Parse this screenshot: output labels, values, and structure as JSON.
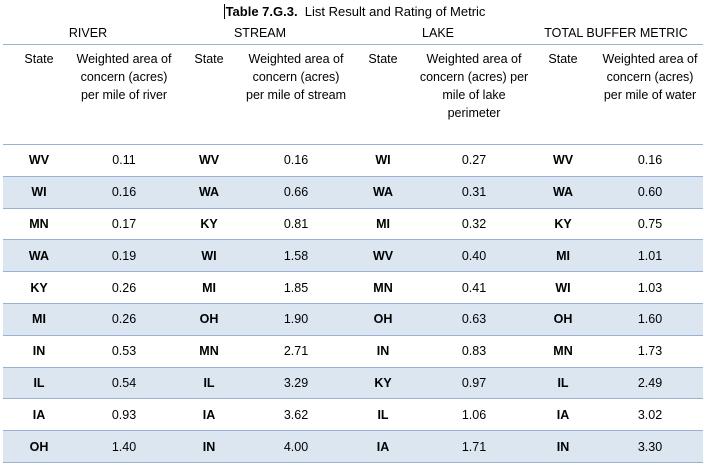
{
  "caption": {
    "prefix": "Table 7.G.3.",
    "rest": "  List Result and Rating of Metric"
  },
  "groups": [
    "RIVER",
    "STREAM",
    "LAKE",
    "TOTAL BUFFER METRIC"
  ],
  "subheaders": [
    {
      "state": "State",
      "metric": "Weighted area of concern (acres) per mile of river"
    },
    {
      "state": "State",
      "metric": "Weighted area of concern (acres) per mile of stream"
    },
    {
      "state": "State",
      "metric": "Weighted area of concern (acres) per mile of lake perimeter"
    },
    {
      "state": "State",
      "metric": "Weighted area of concern (acres) per mile of water"
    }
  ],
  "rows": [
    [
      {
        "s": "WV",
        "v": "0.11"
      },
      {
        "s": "WV",
        "v": "0.16"
      },
      {
        "s": "WI",
        "v": "0.27"
      },
      {
        "s": "WV",
        "v": "0.16"
      }
    ],
    [
      {
        "s": "WI",
        "v": "0.16"
      },
      {
        "s": "WA",
        "v": "0.66"
      },
      {
        "s": "WA",
        "v": "0.31"
      },
      {
        "s": "WA",
        "v": "0.60"
      }
    ],
    [
      {
        "s": "MN",
        "v": "0.17"
      },
      {
        "s": "KY",
        "v": "0.81"
      },
      {
        "s": "MI",
        "v": "0.32"
      },
      {
        "s": "KY",
        "v": "0.75"
      }
    ],
    [
      {
        "s": "WA",
        "v": "0.19"
      },
      {
        "s": "WI",
        "v": "1.58"
      },
      {
        "s": "WV",
        "v": "0.40"
      },
      {
        "s": "MI",
        "v": "1.01"
      }
    ],
    [
      {
        "s": "KY",
        "v": "0.26"
      },
      {
        "s": "MI",
        "v": "1.85"
      },
      {
        "s": "MN",
        "v": "0.41"
      },
      {
        "s": "WI",
        "v": "1.03"
      }
    ],
    [
      {
        "s": "MI",
        "v": "0.26"
      },
      {
        "s": "OH",
        "v": "1.90"
      },
      {
        "s": "OH",
        "v": "0.63"
      },
      {
        "s": "OH",
        "v": "1.60"
      }
    ],
    [
      {
        "s": "IN",
        "v": "0.53"
      },
      {
        "s": "MN",
        "v": "2.71"
      },
      {
        "s": "IN",
        "v": "0.83"
      },
      {
        "s": "MN",
        "v": "1.73"
      }
    ],
    [
      {
        "s": "IL",
        "v": "0.54"
      },
      {
        "s": "IL",
        "v": "3.29"
      },
      {
        "s": "KY",
        "v": "0.97"
      },
      {
        "s": "IL",
        "v": "2.49"
      }
    ],
    [
      {
        "s": "IA",
        "v": "0.93"
      },
      {
        "s": "IA",
        "v": "3.62"
      },
      {
        "s": "IL",
        "v": "1.06"
      },
      {
        "s": "IA",
        "v": "3.02"
      }
    ],
    [
      {
        "s": "OH",
        "v": "1.40"
      },
      {
        "s": "IN",
        "v": "4.00"
      },
      {
        "s": "IA",
        "v": "1.71"
      },
      {
        "s": "IN",
        "v": "3.30"
      }
    ]
  ]
}
